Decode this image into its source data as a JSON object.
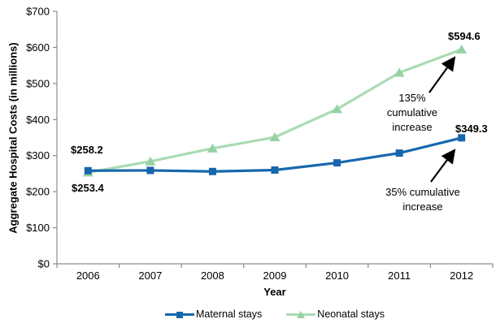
{
  "chart_data": {
    "type": "line",
    "x": [
      "2006",
      "2007",
      "2008",
      "2009",
      "2010",
      "2011",
      "2012"
    ],
    "series": [
      {
        "name": "Maternal stays",
        "marker": "square",
        "color": "#1767ae",
        "values": [
          258.2,
          259,
          256,
          260,
          280,
          307,
          349.3
        ]
      },
      {
        "name": "Neonatal stays",
        "marker": "triangle",
        "color": "#a9dbb3",
        "marker_color": "#97d2a4",
        "values": [
          253.4,
          284,
          320,
          351,
          429,
          530,
          594.6
        ]
      }
    ],
    "title": "",
    "xlabel": "Year",
    "ylabel": "Aggregate Hospital Costs (in millions)",
    "ylim": [
      0,
      700
    ],
    "ytick_step": 100,
    "ytick_prefix": "$",
    "grid": false,
    "legend_position": "bottom"
  },
  "colors": {
    "axis": "#8c8c8c",
    "tick_text": "#000000",
    "annotation_arrow": "#000000"
  },
  "annotations": {
    "maternal_2006_label": "$258.2",
    "neonatal_2006_label": "$253.4",
    "neonatal_2012_label": "$594.6",
    "maternal_2012_label": "$349.3",
    "neonatal_note": "135% cumulative increase",
    "maternal_note": "35% cumulative increase"
  }
}
